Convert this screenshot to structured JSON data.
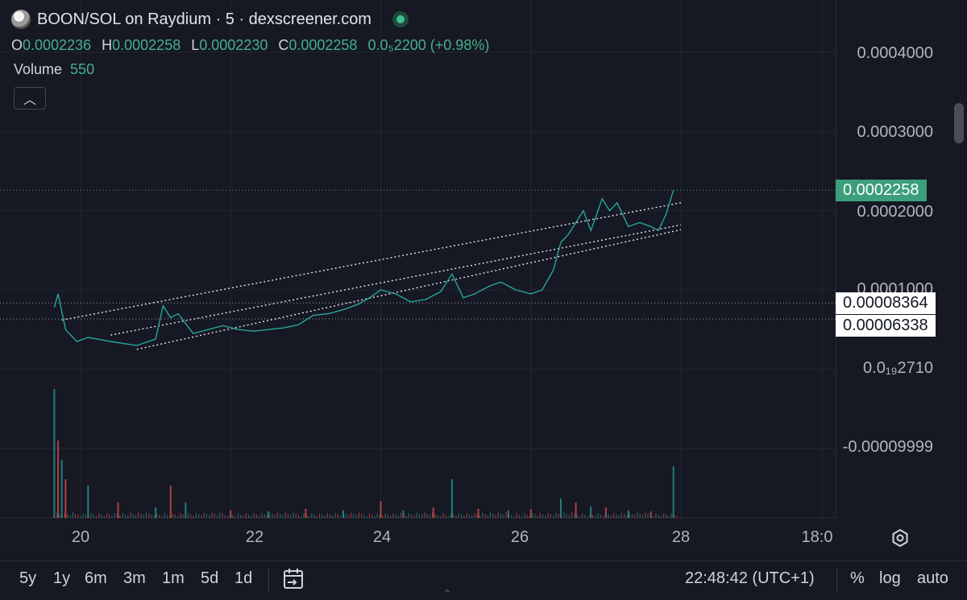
{
  "header": {
    "title": "BOON/SOL on Raydium · 5 · dexscreener.com"
  },
  "ohlc": {
    "o_label": "O",
    "o_value": "0.0002236",
    "h_label": "H",
    "h_value": "0.0002258",
    "l_label": "L",
    "l_value": "0.0002230",
    "c_label": "C",
    "c_value": "0.0002258",
    "change": "0.0₅2200 (+0.98%)"
  },
  "volume": {
    "label": "Volume",
    "value": "550"
  },
  "price_axis": {
    "ticks": [
      "0.0004000",
      "0.0003000",
      "0.0002000",
      "0.0001000",
      "0.0₁₉2710",
      "-0.00009999"
    ]
  },
  "price_badges": {
    "last": "0.0002258",
    "level1": "0.00008364",
    "level2": "0.00006338"
  },
  "time_axis": {
    "ticks": [
      "20",
      "22",
      "24",
      "26",
      "28",
      "18:0"
    ]
  },
  "toolbar": {
    "timeframes": [
      "5y",
      "1y",
      "6m",
      "3m",
      "1m",
      "5d",
      "1d"
    ],
    "clock": "22:48:42 (UTC+1)",
    "percent": "%",
    "log": "log",
    "auto": "auto"
  },
  "colors": {
    "background": "#161823",
    "up": "#26a69a",
    "down": "#ef5350",
    "accent": "#3c9e7c",
    "grid": "#232632"
  },
  "chart_data": {
    "type": "line",
    "title": "BOON/SOL on Raydium · 5 · dexscreener.com",
    "x_unit": "day of month",
    "ylim": [
      -0.00015,
      0.00044
    ],
    "xlim": [
      19.0,
      28.0
    ],
    "grid": true,
    "price": {
      "x": [
        19.65,
        19.7,
        19.8,
        19.95,
        20.1,
        20.4,
        20.6,
        20.75,
        21.0,
        21.1,
        21.2,
        21.3,
        21.5,
        21.7,
        21.9,
        22.1,
        22.3,
        22.5,
        22.7,
        22.9,
        23.1,
        23.3,
        23.5,
        23.7,
        23.85,
        24.0,
        24.2,
        24.4,
        24.6,
        24.8,
        24.95,
        25.1,
        25.25,
        25.45,
        25.6,
        25.8,
        26.0,
        26.15,
        26.3,
        26.4,
        26.5,
        26.6,
        26.7,
        26.8,
        26.95,
        27.05,
        27.15,
        27.3,
        27.45,
        27.6,
        27.7,
        27.8,
        27.9
      ],
      "y": [
        7.8e-05,
        9.5e-05,
        5e-05,
        3.5e-05,
        4e-05,
        3.5e-05,
        3.2e-05,
        3e-05,
        3.8e-05,
        8e-05,
        6.5e-05,
        7e-05,
        4.5e-05,
        5e-05,
        5.5e-05,
        5e-05,
        4.8e-05,
        5e-05,
        5.2e-05,
        5.6e-05,
        6.8e-05,
        7e-05,
        7.5e-05,
        8.2e-05,
        9e-05,
        0.0001,
        9.5e-05,
        8.5e-05,
        8.8e-05,
        9.8e-05,
        0.00012,
        9e-05,
        9.5e-05,
        0.000105,
        0.00011,
        0.0001,
        9.5e-05,
        0.0001,
        0.000125,
        0.00016,
        0.00017,
        0.000185,
        0.0002,
        0.000175,
        0.000215,
        0.0002,
        0.00021,
        0.00018,
        0.000185,
        0.00018,
        0.000175,
        0.000195,
        0.0002258
      ]
    },
    "volume": {
      "x": [
        19.65,
        19.7,
        19.75,
        19.8,
        20.1,
        20.5,
        21.0,
        21.2,
        21.4,
        22.0,
        22.5,
        23.0,
        23.5,
        24.0,
        24.3,
        24.7,
        24.95,
        25.3,
        25.7,
        26.0,
        26.4,
        26.6,
        26.8,
        27.0,
        27.3,
        27.6,
        27.9
      ],
      "y": [
        1.0,
        0.6,
        0.45,
        0.3,
        0.25,
        0.12,
        0.08,
        0.25,
        0.12,
        0.06,
        0.05,
        0.07,
        0.06,
        0.13,
        0.06,
        0.08,
        0.3,
        0.07,
        0.06,
        0.07,
        0.15,
        0.12,
        0.09,
        0.08,
        0.06,
        0.05,
        0.4
      ]
    },
    "trend_lines": [
      {
        "x": [
          19.75,
          28.0
        ],
        "y": [
          6.2e-05,
          0.00021
        ]
      },
      {
        "x": [
          20.4,
          28.0
        ],
        "y": [
          4.3e-05,
          0.000182
        ]
      },
      {
        "x": [
          20.75,
          28.0
        ],
        "y": [
          2.5e-05,
          0.000176
        ]
      }
    ],
    "horizontal_levels": [
      0.0002258,
      8.364e-05,
      6.338e-05
    ]
  }
}
